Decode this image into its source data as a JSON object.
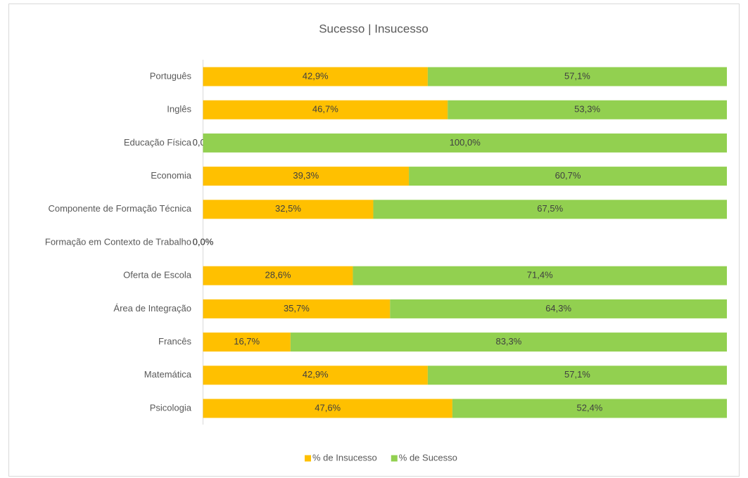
{
  "chart_data": {
    "type": "bar",
    "orientation": "horizontal",
    "stacked": true,
    "title": "Sucesso | Insucesso",
    "categories": [
      "Português",
      "Inglês",
      "Educação Física",
      "Economia",
      "Componente de Formação Técnica",
      "Formação em Contexto de Trabalho",
      "Oferta de Escola",
      "Área de Integração",
      "Francês",
      "Matemática",
      "Psicologia"
    ],
    "series": [
      {
        "name": "% de Insucesso",
        "color": "#FFC000",
        "values": [
          42.9,
          46.7,
          0,
          39.3,
          32.5,
          0,
          28.6,
          35.7,
          16.7,
          42.9,
          47.6
        ],
        "value_labels": [
          "42,9%",
          "46,7%",
          "0,0%",
          "39,3%",
          "32,5%",
          "0,0%",
          "28,6%",
          "35,7%",
          "16,7%",
          "42,9%",
          "47,6%"
        ]
      },
      {
        "name": "% de Sucesso",
        "color": "#92D050",
        "values": [
          57.1,
          53.3,
          100,
          60.7,
          67.5,
          0,
          71.4,
          64.3,
          83.3,
          57.1,
          52.4
        ],
        "value_labels": [
          "57,1%",
          "53,3%",
          "100,0%",
          "60,7%",
          "67,5%",
          "0,0%",
          "71,4%",
          "64,3%",
          "83,3%",
          "57,1%",
          "52,4%"
        ]
      }
    ],
    "xlim": [
      0,
      100
    ],
    "legend": "bottom"
  }
}
